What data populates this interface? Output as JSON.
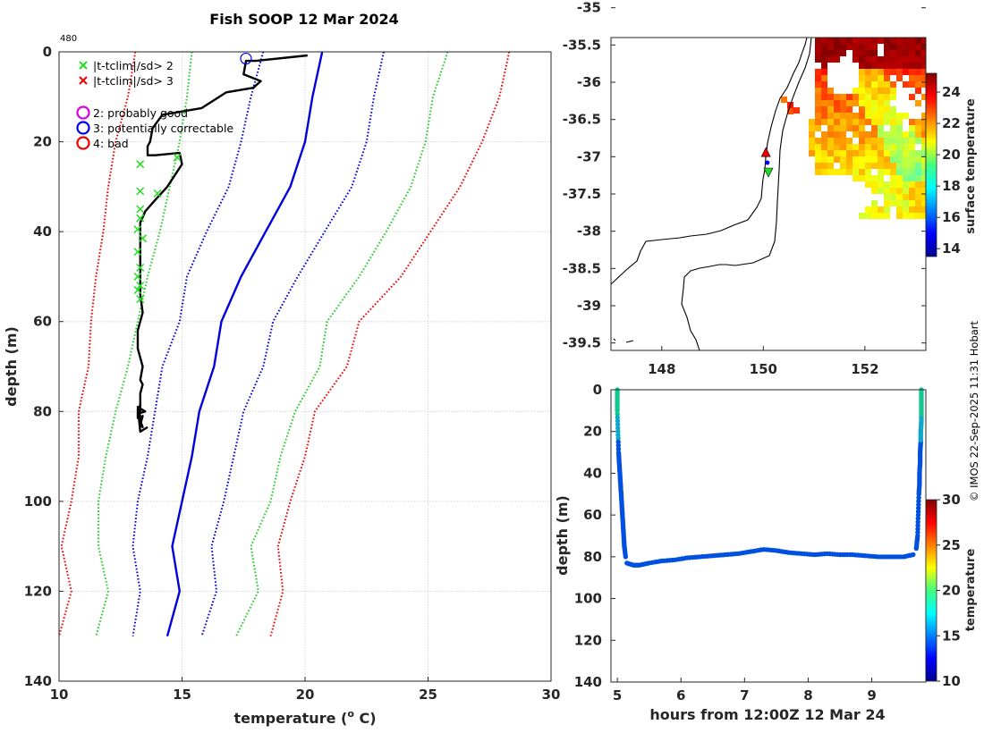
{
  "chart_data": [
    {
      "type": "line",
      "title": "Fish SOOP 12 Mar 2024",
      "drop_id": "480",
      "xlabel": "temperature (",
      "xlabel_sup": "o",
      "xlabel_unit": " C)",
      "ylabel": "depth (m)",
      "xlim": [
        10,
        30
      ],
      "ylim": [
        140,
        0
      ],
      "xticks": [
        10,
        15,
        20,
        25,
        30
      ],
      "yticks": [
        0,
        20,
        40,
        60,
        80,
        100,
        120,
        140
      ],
      "grid": true,
      "legend": [
        {
          "marker": "x",
          "color": "#22dd22",
          "label": "|t-tclim|/sd> 2"
        },
        {
          "marker": "x",
          "color": "#ee0000",
          "label": "|t-tclim|/sd> 3"
        },
        {
          "marker": "o",
          "color": "#dd00dd",
          "label": "2: probably good"
        },
        {
          "marker": "o",
          "color": "#0000ee",
          "label": "3: potentially correctable"
        },
        {
          "marker": "o",
          "color": "#ee0000",
          "label": "4: bad"
        }
      ],
      "climatology_depths": [
        0,
        10,
        20,
        30,
        40,
        50,
        60,
        70,
        80,
        90,
        100,
        110,
        120,
        130
      ],
      "series": [
        {
          "name": "clim-mean",
          "color": "#0000dd",
          "style": "solid",
          "values": [
            20.7,
            20.3,
            20.0,
            19.4,
            18.4,
            17.4,
            16.6,
            16.3,
            15.7,
            15.4,
            15.0,
            14.6,
            14.9,
            14.4
          ]
        },
        {
          "name": "clim+1sd",
          "color": "#0000dd",
          "style": "dotted",
          "values": [
            23.2,
            22.8,
            22.5,
            21.9,
            20.8,
            19.7,
            18.7,
            18.3,
            17.5,
            17.1,
            16.7,
            16.2,
            16.4,
            15.8
          ]
        },
        {
          "name": "clim-1sd",
          "color": "#0000dd",
          "style": "dotted",
          "values": [
            18.3,
            17.8,
            17.4,
            16.9,
            16.0,
            15.2,
            14.9,
            14.2,
            13.9,
            13.6,
            13.2,
            13.0,
            13.3,
            13.0
          ]
        },
        {
          "name": "clim+2sd",
          "color": "#22cc22",
          "style": "dotted",
          "values": [
            25.8,
            25.2,
            24.9,
            24.3,
            23.3,
            22.2,
            20.9,
            20.6,
            19.6,
            19.0,
            18.6,
            17.8,
            18.1,
            17.2
          ]
        },
        {
          "name": "clim-2sd",
          "color": "#22cc22",
          "style": "dotted",
          "values": [
            15.4,
            15.2,
            14.9,
            14.5,
            14.1,
            13.6,
            13.2,
            12.8,
            12.3,
            11.9,
            11.6,
            11.6,
            12.0,
            11.5
          ]
        },
        {
          "name": "clim+3sd",
          "color": "#ee0000",
          "style": "dotted",
          "values": [
            28.3,
            27.9,
            27.2,
            26.3,
            25.1,
            23.9,
            22.2,
            21.7,
            20.4,
            20.0,
            19.4,
            18.9,
            19.1,
            18.6
          ]
        },
        {
          "name": "clim-3sd",
          "color": "#ee0000",
          "style": "dotted",
          "values": [
            13.1,
            12.8,
            12.3,
            12.0,
            11.8,
            11.5,
            11.3,
            11.2,
            10.8,
            10.8,
            10.5,
            10.1,
            10.5,
            10.0
          ]
        }
      ],
      "profile": {
        "color": "#000000",
        "temperature": [
          20.1,
          18.0,
          17.6,
          17.5,
          18.2,
          17.9,
          16.8,
          15.8,
          14.2,
          13.8,
          13.7,
          13.6,
          13.6,
          13.9,
          14.9,
          15.0,
          14.4,
          13.9,
          13.5,
          13.3,
          13.3,
          13.3,
          13.3,
          13.3,
          13.4,
          13.2,
          13.2,
          13.4,
          13.3,
          13.4,
          13.3,
          13.3,
          13.3,
          13.3,
          13.3,
          13.2,
          13.3,
          13.2,
          13.2,
          13.2,
          13.2,
          13.3,
          13.4,
          13.3,
          13.4,
          13.2,
          13.5,
          13.2,
          13.3,
          13.6
        ],
        "depth": [
          0.8,
          2.0,
          2.0,
          5.0,
          6.5,
          8.0,
          9.0,
          12.5,
          14.0,
          17.0,
          20.0,
          21.0,
          23.0,
          23.0,
          22.5,
          25.0,
          30.0,
          33.0,
          35.5,
          38.0,
          42.0,
          46.0,
          50.0,
          54.0,
          58.0,
          62.0,
          66.0,
          70.0,
          73.0,
          74.0,
          76.0,
          78.0,
          79.0,
          80.0,
          78.5,
          80.0,
          81.0,
          79.5,
          80.5,
          81.5,
          80.0,
          82.0,
          81.0,
          83.0,
          83.5,
          80.5,
          80.0,
          79.0,
          84.5,
          83.5
        ]
      },
      "flagged_sd2": {
        "color": "#22dd22",
        "temperature": [
          13.3,
          14.8,
          13.3,
          14.0,
          13.3,
          13.3,
          13.2,
          13.4,
          13.2,
          13.3,
          13.2,
          13.3,
          13.2,
          13.3
        ],
        "depth": [
          25,
          23.5,
          31,
          31.5,
          35,
          37,
          39.5,
          41.5,
          44.5,
          48,
          50,
          52,
          53,
          55
        ]
      },
      "qc_circle": {
        "temperature": 17.6,
        "depth": 1.5,
        "color": "#0000ee"
      }
    },
    {
      "type": "heatmap",
      "name": "surface temperature map",
      "xlim": [
        147.0,
        153.2
      ],
      "ylim": [
        -39.6,
        -35.4
      ],
      "xticks": [
        148,
        150,
        152
      ],
      "yticks": [
        -35,
        -35.5,
        -36,
        -36.5,
        -37,
        -37.5,
        -38,
        -38.5,
        -39,
        -39.5
      ],
      "colorbar": {
        "label": "surface temperature",
        "min": 13.5,
        "max": 25.2,
        "ticks": [
          14,
          16,
          18,
          20,
          22,
          24
        ],
        "colormap": "jet"
      },
      "markers": [
        {
          "shape": "triangle-up",
          "color": "#ee0000",
          "lon": 150.05,
          "lat": -36.95
        },
        {
          "shape": "triangle-down",
          "color": "#22dd22",
          "lon": 150.1,
          "lat": -37.2
        },
        {
          "shape": "dot",
          "color": "#0000ee",
          "lon": 150.08,
          "lat": -37.08
        }
      ]
    },
    {
      "type": "scatter",
      "name": "drop depth vs time",
      "xlabel": "hours from 12:00Z 12 Mar 24",
      "ylabel": "depth (m)",
      "xlim": [
        4.9,
        9.85
      ],
      "ylim": [
        140,
        0
      ],
      "xticks": [
        5,
        6,
        7,
        8,
        9
      ],
      "yticks": [
        0,
        20,
        40,
        60,
        80,
        100,
        120,
        140
      ],
      "colorbar": {
        "label": "temperature",
        "min": 10,
        "max": 30,
        "ticks": [
          10,
          15,
          20,
          25,
          30
        ],
        "colormap": "jet"
      },
      "series": [
        {
          "name": "descent",
          "hours": [
            5.0,
            5.0,
            5.0,
            5.01,
            5.02,
            5.03,
            5.04,
            5.05,
            5.06,
            5.07,
            5.08,
            5.09,
            5.1,
            5.11,
            5.13
          ],
          "depth": [
            0,
            5,
            10,
            20,
            30,
            35,
            40,
            45,
            50,
            55,
            60,
            65,
            70,
            75,
            80
          ]
        },
        {
          "name": "along-track",
          "hours": [
            5.15,
            5.25,
            5.35,
            5.5,
            5.7,
            5.9,
            6.1,
            6.3,
            6.5,
            6.7,
            6.9,
            7.1,
            7.3,
            7.5,
            7.7,
            7.9,
            8.1,
            8.3,
            8.5,
            8.7,
            8.9,
            9.1,
            9.3,
            9.5,
            9.65
          ],
          "depth": [
            83,
            84,
            84,
            83,
            82,
            81.5,
            80.5,
            80,
            79.5,
            79,
            78.5,
            77.5,
            76.5,
            77,
            78,
            78.5,
            79,
            78.5,
            79,
            79,
            79.5,
            80,
            80,
            80,
            79
          ]
        },
        {
          "name": "ascent",
          "hours": [
            9.7,
            9.72,
            9.73,
            9.74,
            9.75,
            9.75,
            9.76,
            9.76,
            9.77,
            9.77,
            9.78,
            9.78,
            9.78,
            9.78
          ],
          "depth": [
            76,
            70,
            60,
            50,
            45,
            40,
            35,
            30,
            25,
            20,
            15,
            10,
            5,
            0
          ]
        }
      ],
      "colors": {
        "deep": "#0050e0",
        "shallow": "#10c870"
      }
    }
  ],
  "footer_text": "© IMOS 22-Sep-2025 11:31 Hobart"
}
